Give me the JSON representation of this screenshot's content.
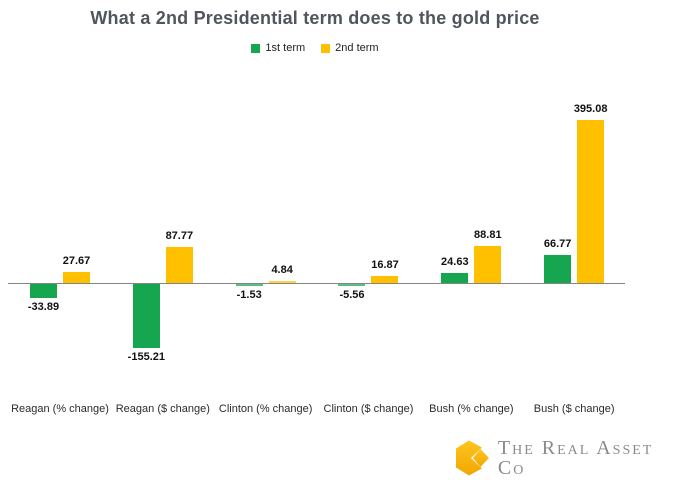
{
  "chart_data": {
    "type": "bar",
    "title": "What a 2nd Presidential term does to the gold price",
    "categories": [
      "Reagan (% change)",
      "Reagan ($ change)",
      "Clinton (% change)",
      "Clinton ($ change)",
      "Bush (% change)",
      "Bush ($ change)"
    ],
    "series": [
      {
        "name": "1st term",
        "color": "#17A650",
        "values": [
          -33.89,
          -155.21,
          -1.53,
          -5.56,
          24.63,
          66.77
        ]
      },
      {
        "name": "2nd term",
        "color": "#FFC000",
        "values": [
          27.67,
          87.77,
          4.84,
          16.87,
          88.81,
          395.08
        ]
      }
    ],
    "data_labels_visible": true,
    "legend_position": "top",
    "gridlines": false,
    "y_axis_visible": false,
    "axis_line_color": "#848484",
    "value_range_shown": [
      -155.21,
      395.08
    ]
  },
  "title_color": "#50555e",
  "logo": {
    "text": "The Real Asset Co",
    "icon": "gold-cube-icon",
    "text_color": "#8b8b8b",
    "gold_light": "#FFC41F",
    "gold_dark": "#F2A702"
  }
}
